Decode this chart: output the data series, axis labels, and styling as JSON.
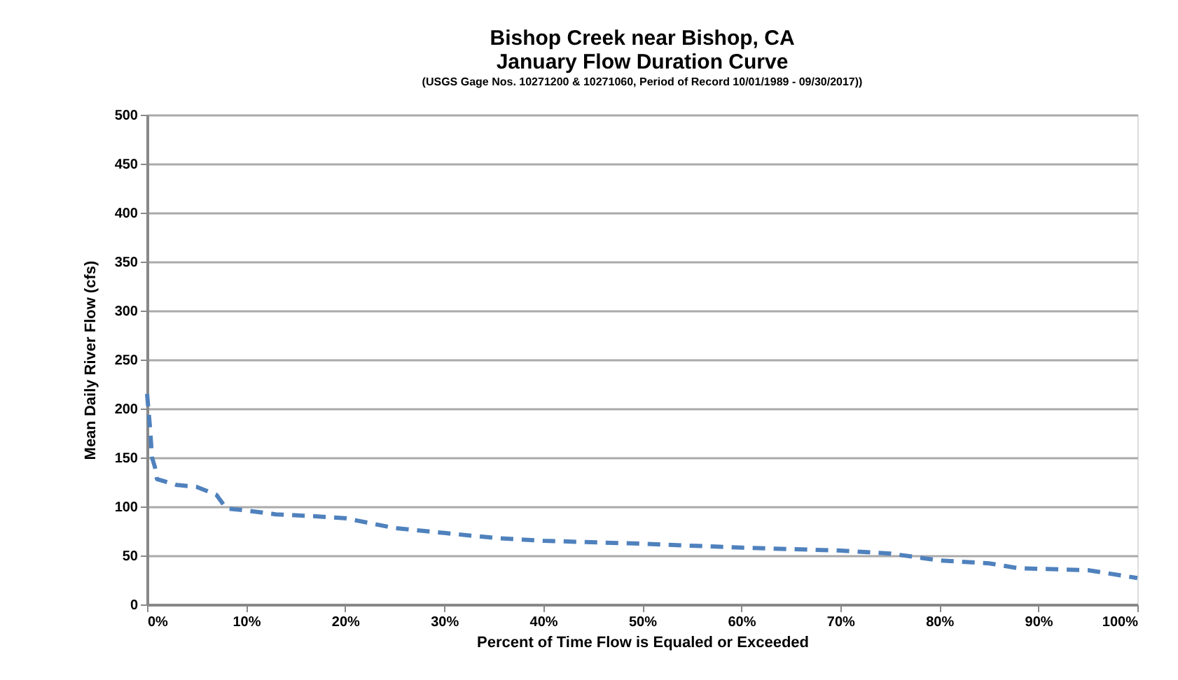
{
  "chart_data": {
    "type": "line",
    "title": "Bishop Creek near Bishop, CA\nJanuary Flow Duration Curve",
    "subtitle": "(USGS Gage Nos. 10271200 & 10271060, Period of Record 10/01/1989 - 09/30/2017))",
    "xlabel": "Percent of Time Flow is Equaled or Exceeded",
    "ylabel": "Mean Daily River Flow (cfs)",
    "x": [
      0,
      0.3,
      0.5,
      0.8,
      1,
      3,
      5,
      7,
      8,
      10,
      13,
      17,
      20,
      25,
      30,
      35,
      40,
      50,
      60,
      70,
      75,
      80,
      85,
      88,
      95,
      100
    ],
    "series": [
      {
        "color": "#4f81bd",
        "values": [
          215,
          180,
          150,
          140,
          128,
          122,
          120,
          112,
          98,
          96,
          92,
          90,
          88,
          78,
          73,
          68,
          65,
          62,
          58,
          55,
          52,
          45,
          42,
          37,
          35,
          27
        ]
      }
    ],
    "xlim": [
      0,
      100
    ],
    "xticks": [
      {
        "value": 0,
        "label": "0%"
      },
      {
        "value": 10,
        "label": "10%"
      },
      {
        "value": 20,
        "label": "20%"
      },
      {
        "value": 30,
        "label": "30%"
      },
      {
        "value": 40,
        "label": "40%"
      },
      {
        "value": 50,
        "label": "50%"
      },
      {
        "value": 60,
        "label": "60%"
      },
      {
        "value": 70,
        "label": "70%"
      },
      {
        "value": 80,
        "label": "80%"
      },
      {
        "value": 90,
        "label": "90%"
      },
      {
        "value": 100,
        "label": "100%"
      }
    ],
    "ylim": [
      0,
      500
    ],
    "yticks": [
      0,
      50,
      100,
      150,
      200,
      250,
      300,
      350,
      400,
      450,
      500
    ],
    "grid": "y",
    "marker": "none",
    "line_style": "dashed"
  }
}
